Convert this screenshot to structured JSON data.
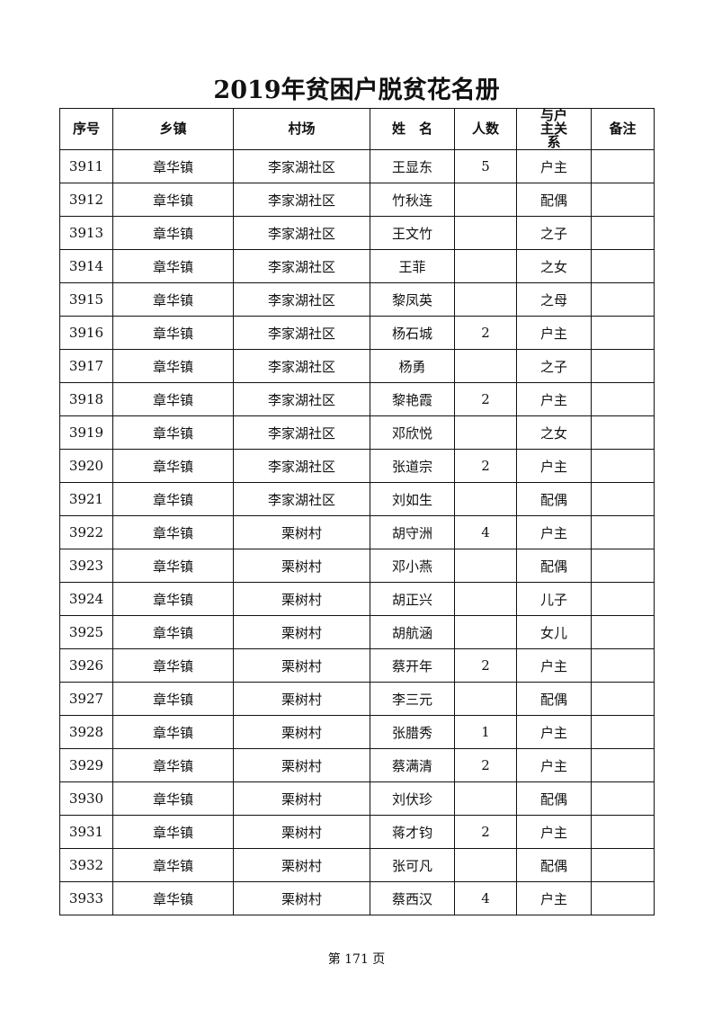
{
  "title": "2019年贫困户脱贫花名册",
  "headers": [
    "序号",
    "乡镇",
    "村场",
    "姓　名",
    "人数",
    "与户主关系",
    "备注"
  ],
  "rows": [
    [
      "3911",
      "章华镇",
      "李家湖社区",
      "王显东",
      "5",
      "户主",
      ""
    ],
    [
      "3912",
      "章华镇",
      "李家湖社区",
      "竹秋连",
      "",
      "配偶",
      ""
    ],
    [
      "3913",
      "章华镇",
      "李家湖社区",
      "王文竹",
      "",
      "之子",
      ""
    ],
    [
      "3914",
      "章华镇",
      "李家湖社区",
      "王菲",
      "",
      "之女",
      ""
    ],
    [
      "3915",
      "章华镇",
      "李家湖社区",
      "黎凤英",
      "",
      "之母",
      ""
    ],
    [
      "3916",
      "章华镇",
      "李家湖社区",
      "杨石城",
      "2",
      "户主",
      ""
    ],
    [
      "3917",
      "章华镇",
      "李家湖社区",
      "杨勇",
      "",
      "之子",
      ""
    ],
    [
      "3918",
      "章华镇",
      "李家湖社区",
      "黎艳霞",
      "2",
      "户主",
      ""
    ],
    [
      "3919",
      "章华镇",
      "李家湖社区",
      "邓欣悦",
      "",
      "之女",
      ""
    ],
    [
      "3920",
      "章华镇",
      "李家湖社区",
      "张道宗",
      "2",
      "户主",
      ""
    ],
    [
      "3921",
      "章华镇",
      "李家湖社区",
      "刘如生",
      "",
      "配偶",
      ""
    ],
    [
      "3922",
      "章华镇",
      "栗树村",
      "胡守洲",
      "4",
      "户主",
      ""
    ],
    [
      "3923",
      "章华镇",
      "栗树村",
      "邓小燕",
      "",
      "配偶",
      ""
    ],
    [
      "3924",
      "章华镇",
      "栗树村",
      "胡正兴",
      "",
      "儿子",
      ""
    ],
    [
      "3925",
      "章华镇",
      "栗树村",
      "胡航涵",
      "",
      "女儿",
      ""
    ],
    [
      "3926",
      "章华镇",
      "栗树村",
      "蔡开年",
      "2",
      "户主",
      ""
    ],
    [
      "3927",
      "章华镇",
      "栗树村",
      "李三元",
      "",
      "配偶",
      ""
    ],
    [
      "3928",
      "章华镇",
      "栗树村",
      "张腊秀",
      "1",
      "户主",
      ""
    ],
    [
      "3929",
      "章华镇",
      "栗树村",
      "蔡满清",
      "2",
      "户主",
      ""
    ],
    [
      "3930",
      "章华镇",
      "栗树村",
      "刘伏珍",
      "",
      "配偶",
      ""
    ],
    [
      "3931",
      "章华镇",
      "栗树村",
      "蒋才钧",
      "2",
      "户主",
      ""
    ],
    [
      "3932",
      "章华镇",
      "栗树村",
      "张可凡",
      "",
      "配偶",
      ""
    ],
    [
      "3933",
      "章华镇",
      "栗树村",
      "蔡西汉",
      "4",
      "户主",
      ""
    ]
  ],
  "footer": "第 171 页"
}
